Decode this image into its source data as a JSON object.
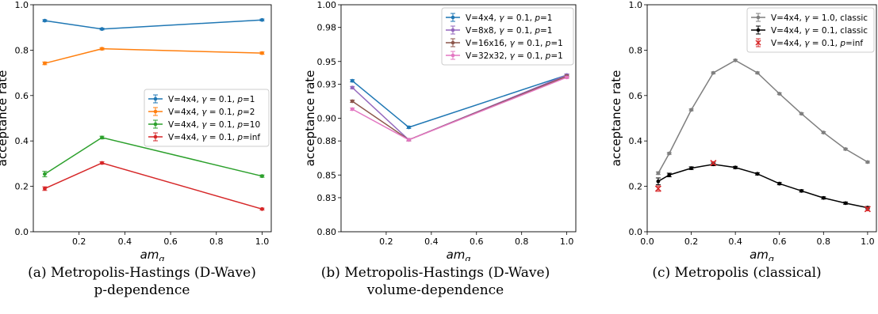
{
  "chart_data": [
    {
      "type": "line",
      "title": "",
      "xlabel": "am_q",
      "ylabel": "acceptance rate",
      "xlim": [
        0.0,
        1.04
      ],
      "ylim": [
        0.0,
        1.0
      ],
      "x_ticks": [
        "0.2",
        "0.4",
        "0.6",
        "0.8",
        "1.0"
      ],
      "y_ticks": [
        "0.0",
        "0.2",
        "0.4",
        "0.6",
        "0.8",
        "1.0"
      ],
      "legend_position": "center-right",
      "caption_line1": "(a)  Metropolis-Hastings (D-Wave)",
      "caption_line2": "p-dependence",
      "series": [
        {
          "name": "V=4x4, γ = 0.1, p=1",
          "color": "#1f77b4",
          "x": [
            0.05,
            0.3,
            1.0
          ],
          "y": [
            0.93,
            0.893,
            0.933
          ],
          "err": [
            0.004,
            0.004,
            0.004
          ]
        },
        {
          "name": "V=4x4, γ = 0.1, p=2",
          "color": "#ff7f0e",
          "x": [
            0.05,
            0.3,
            1.0
          ],
          "y": [
            0.742,
            0.806,
            0.787
          ],
          "err": [
            0.006,
            0.005,
            0.005
          ]
        },
        {
          "name": "V=4x4, γ = 0.1, p=10",
          "color": "#2ca02c",
          "x": [
            0.05,
            0.3,
            1.0
          ],
          "y": [
            0.254,
            0.415,
            0.245
          ],
          "err": [
            0.012,
            0.006,
            0.005
          ]
        },
        {
          "name": "V=4x4, γ = 0.1, p=inf",
          "color": "#d62728",
          "x": [
            0.05,
            0.3,
            1.0
          ],
          "y": [
            0.19,
            0.303,
            0.1
          ],
          "err": [
            0.008,
            0.005,
            0.004
          ]
        }
      ]
    },
    {
      "type": "line",
      "title": "",
      "xlabel": "am_q",
      "ylabel": "acceptance rate",
      "xlim": [
        0.0,
        1.04
      ],
      "ylim": [
        0.8,
        1.0
      ],
      "x_ticks": [
        "0.2",
        "0.4",
        "0.6",
        "0.8",
        "1.0"
      ],
      "y_ticks": [
        "0.80",
        "0.83",
        "0.85",
        "0.88",
        "0.90",
        "0.93",
        "0.95",
        "0.98",
        "1.00"
      ],
      "legend_position": "top-right",
      "caption_line1": "(b)  Metropolis-Hastings (D-Wave)",
      "caption_line2": "volume-dependence",
      "series": [
        {
          "name": "V=4x4, γ = 0.1, p=1",
          "color": "#1f77b4",
          "x": [
            0.05,
            0.3,
            1.0
          ],
          "y": [
            0.933,
            0.892,
            0.938
          ],
          "err": [
            0.001,
            0.001,
            0.001
          ]
        },
        {
          "name": "V=8x8, γ = 0.1, p=1",
          "color": "#9467bd",
          "x": [
            0.05,
            0.3,
            1.0
          ],
          "y": [
            0.927,
            0.881,
            0.938
          ],
          "err": [
            0.001,
            0.001,
            0.001
          ]
        },
        {
          "name": "V=16x16, γ = 0.1, p=1",
          "color": "#8c564b",
          "x": [
            0.05,
            0.3,
            1.0
          ],
          "y": [
            0.915,
            0.881,
            0.937
          ],
          "err": [
            0.001,
            0.001,
            0.001
          ]
        },
        {
          "name": "V=32x32, γ = 0.1, p=1",
          "color": "#e377c2",
          "x": [
            0.05,
            0.3,
            1.0
          ],
          "y": [
            0.908,
            0.881,
            0.936
          ],
          "err": [
            0.001,
            0.001,
            0.001
          ]
        }
      ]
    },
    {
      "type": "line",
      "title": "",
      "xlabel": "am_q",
      "ylabel": "acceptance rate",
      "xlim": [
        0.0,
        1.04
      ],
      "ylim": [
        0.0,
        1.0
      ],
      "x_ticks": [
        "0.0",
        "0.2",
        "0.4",
        "0.6",
        "0.8",
        "1.0"
      ],
      "y_ticks": [
        "0.0",
        "0.2",
        "0.4",
        "0.6",
        "0.8",
        "1.0"
      ],
      "legend_position": "top-right",
      "caption_line1": "(c)  Metropolis (classical)",
      "caption_line2": "",
      "series": [
        {
          "name": "V=4x4, γ = 1.0, classic",
          "color": "#7f7f7f",
          "marker": "dot",
          "x": [
            0.05,
            0.1,
            0.2,
            0.3,
            0.4,
            0.5,
            0.6,
            0.7,
            0.8,
            0.9,
            1.0
          ],
          "y": [
            0.258,
            0.345,
            0.537,
            0.7,
            0.755,
            0.7,
            0.608,
            0.52,
            0.437,
            0.364,
            0.307
          ],
          "err": [
            0.006,
            0.004,
            0.004,
            0.004,
            0.004,
            0.004,
            0.004,
            0.004,
            0.004,
            0.004,
            0.004
          ]
        },
        {
          "name": "V=4x4, γ = 0.1, classic",
          "color": "#000000",
          "marker": "dot",
          "x": [
            0.05,
            0.1,
            0.2,
            0.3,
            0.4,
            0.5,
            0.6,
            0.7,
            0.8,
            0.9,
            1.0
          ],
          "y": [
            0.222,
            0.25,
            0.28,
            0.297,
            0.283,
            0.255,
            0.212,
            0.18,
            0.149,
            0.126,
            0.106
          ],
          "err": [
            0.015,
            0.008,
            0.006,
            0.006,
            0.005,
            0.005,
            0.005,
            0.005,
            0.005,
            0.005,
            0.005
          ]
        },
        {
          "name": "V=4x4, γ = 0.1, p=inf",
          "color": "#d62728",
          "marker": "x",
          "line": false,
          "x": [
            0.05,
            0.3,
            1.0
          ],
          "y": [
            0.19,
            0.303,
            0.1
          ],
          "err": [
            0.012,
            0.006,
            0.008
          ]
        }
      ]
    }
  ]
}
